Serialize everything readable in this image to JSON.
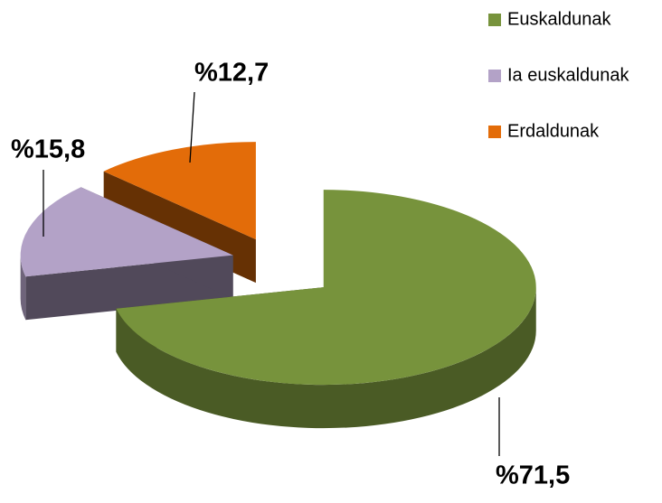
{
  "chart_data": {
    "type": "pie",
    "categories": [
      "Euskaldunak",
      "Ia euskaldunak",
      "Erdaldunak"
    ],
    "values": [
      71.5,
      15.8,
      12.7
    ],
    "value_labels": [
      "%71,5",
      "%15,8",
      "%12,7"
    ],
    "colors": [
      "#77933c",
      "#b3a2c7",
      "#e36c09"
    ],
    "legend": "top-right"
  }
}
